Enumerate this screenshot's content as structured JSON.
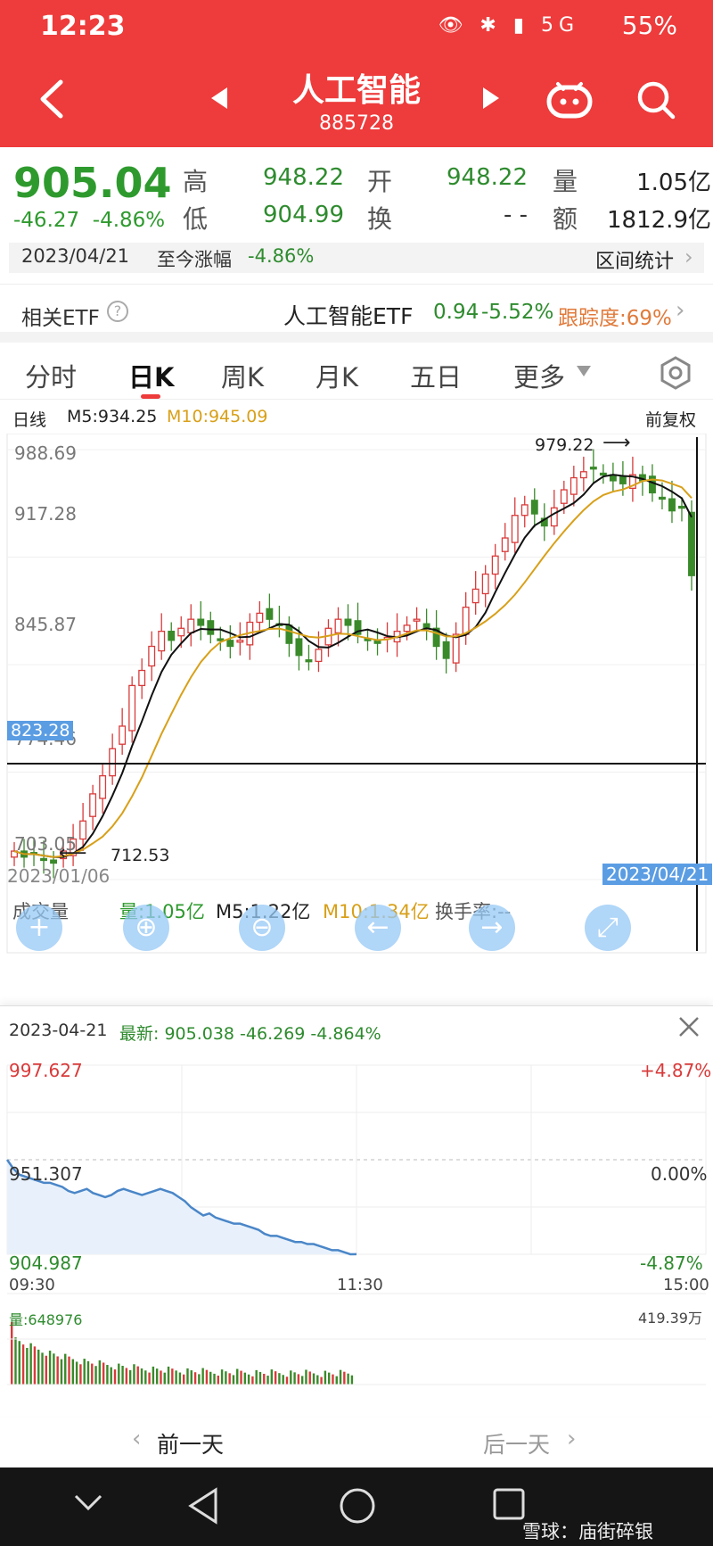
{
  "status_bar": {
    "time": "12:23",
    "icons": "👁 ✱ ▮ 5G",
    "battery": "55%"
  },
  "header": {
    "back_icon": "back-arrow-icon",
    "prev_icon": "triangle-left-icon",
    "next_icon": "triangle-right-icon",
    "title": "人工智能",
    "code": "885728",
    "robot_icon": "robot-icon",
    "search_icon": "search-icon",
    "bg_color": "#ee3b3b"
  },
  "quote": {
    "price": "905.04",
    "change": "-46.27",
    "change_pct": "-4.86%",
    "high_label": "高",
    "high": "948.22",
    "low_label": "低",
    "low": "904.99",
    "open_label": "开",
    "open": "948.22",
    "turnover_label": "换",
    "turnover": "- -",
    "volume_label": "量",
    "volume": "1.05亿",
    "amount_label": "额",
    "amount": "1812.9亿"
  },
  "date_strip": {
    "date": "2023/04/21",
    "label": "至今涨幅",
    "value": "-4.86%",
    "stats": "区间统计"
  },
  "etf": {
    "label": "相关ETF",
    "help_icon": "question-circle-icon",
    "name": "人工智能ETF",
    "price": "0.94",
    "pct": "-5.52%",
    "tracking": "跟踪度:69%"
  },
  "tabs": [
    {
      "label": "分时"
    },
    {
      "label": "日K"
    },
    {
      "label": "周K"
    },
    {
      "label": "月K"
    },
    {
      "label": "五日"
    },
    {
      "label": "更多"
    }
  ],
  "tabs_more_icon": "triangle-down-icon",
  "settings_icon": "hexagon-gear-icon",
  "kline": {
    "legend_name": "日线",
    "ma5": "M5:934.25",
    "ma10": "M10:945.09",
    "adjust": "前复权",
    "y_ticks": [
      "988.69",
      "917.28",
      "845.87",
      "774.46",
      "703.05"
    ],
    "crosshair_value": "823.28",
    "high_mark": "979.22",
    "low_mark": "712.53",
    "date_start": "2023/01/06",
    "date_end": "2023/04/21",
    "volume_label": "成交量",
    "volume_info": "量:1.05亿",
    "vol_ma5": "M5:1.22亿",
    "vol_ma10": "M10:1.34亿",
    "vol_turnover": "换手率:--"
  },
  "toolbar": [
    {
      "icon": "zoom-in-icon"
    },
    {
      "icon": "zoom-out-icon"
    },
    {
      "icon": "arrow-left-icon"
    },
    {
      "icon": "arrow-right-icon"
    },
    {
      "icon": "fullscreen-icon"
    }
  ],
  "popup": {
    "date": "2023-04-21",
    "latest": "最新: 905.038 -46.269 -4.864%",
    "close_icon": "close-icon",
    "y_top": "997.627",
    "y_mid": "951.307",
    "y_bot": "904.987",
    "pct_top": "+4.87%",
    "pct_mid": "0.00%",
    "pct_bot": "-4.87%",
    "t_start": "09:30",
    "t_mid": "11:30",
    "t_end": "15:00",
    "vol_label": "量:648976",
    "vol_max": "419.39万"
  },
  "day_nav": {
    "prev": "前一天",
    "next": "后一天"
  },
  "sys_nav": {
    "back": "nav-back-icon",
    "home": "nav-home-icon",
    "recent": "nav-recent-icon",
    "watermark": "雪球：庙街碎银"
  },
  "chart_data": {
    "type": "candlestick",
    "x_range": [
      "2023/01/06",
      "2023/04/21"
    ],
    "y_range": [
      703.05,
      988.69
    ],
    "candles_close": [
      722,
      718,
      720,
      716,
      714,
      722,
      730,
      742,
      760,
      772,
      790,
      805,
      832,
      842,
      858,
      868,
      862,
      870,
      876,
      872,
      866,
      862,
      858,
      862,
      874,
      880,
      876,
      872,
      860,
      852,
      848,
      856,
      870,
      876,
      872,
      866,
      862,
      860,
      864,
      868,
      872,
      876,
      870,
      858,
      850,
      866,
      884,
      896,
      906,
      918,
      930,
      945,
      952,
      946,
      938,
      950,
      962,
      970,
      974,
      976,
      972,
      968,
      966,
      972,
      968,
      960,
      956,
      948,
      950,
      905
    ],
    "ma5_close": 934.25,
    "ma10_close": 945.09,
    "intraday": {
      "prev_close": 951.307,
      "max": 997.627,
      "min": 904.987,
      "prices": [
        951.3,
        947,
        944,
        943,
        942,
        941,
        940,
        940,
        939,
        938,
        936,
        935,
        936,
        937,
        935,
        934,
        933,
        934,
        936,
        937,
        936,
        935,
        934,
        935,
        936,
        937,
        936,
        935,
        933,
        931,
        928,
        926,
        924,
        925,
        923,
        922,
        921,
        920,
        920,
        919,
        918,
        917,
        915,
        914,
        914,
        913,
        912,
        911,
        911,
        910,
        910,
        909,
        908,
        907,
        907,
        906,
        905,
        905.04
      ]
    }
  }
}
